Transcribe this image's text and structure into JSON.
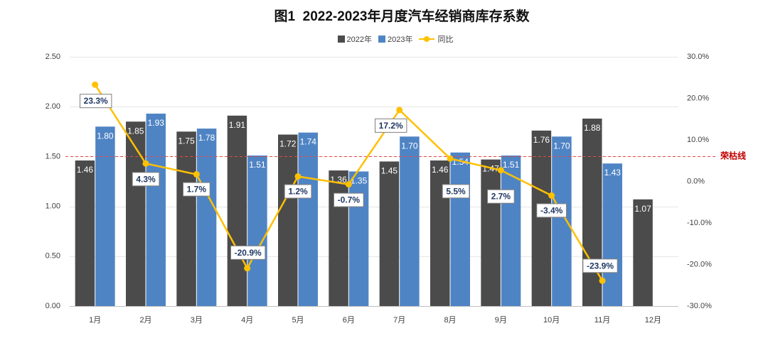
{
  "colors": {
    "bar_2022": "#4b4b4b",
    "bar_2023": "#4f84c4",
    "yoy_line": "#ffc000",
    "line_label_text": "#1f3864",
    "line_label_border": "#7f7f7f",
    "reference_line": "#e24a4a",
    "reference_label": "#c00000",
    "axis_line": "#bfbfbf",
    "grid": "#e6e6e6"
  },
  "chart_data": {
    "type": "bar",
    "title": "图1  2022-2023年月度汽车经销商库存系数",
    "categories": [
      "1月",
      "2月",
      "3月",
      "4月",
      "5月",
      "6月",
      "7月",
      "8月",
      "9月",
      "10月",
      "11月",
      "12月"
    ],
    "series": [
      {
        "name": "2022年",
        "type": "bar",
        "axis": "left",
        "values": [
          1.46,
          1.85,
          1.75,
          1.91,
          1.72,
          1.36,
          1.45,
          1.46,
          1.47,
          1.76,
          1.88,
          1.07
        ]
      },
      {
        "name": "2023年",
        "type": "bar",
        "axis": "left",
        "values": [
          1.8,
          1.93,
          1.78,
          1.51,
          1.74,
          1.35,
          1.7,
          1.54,
          1.51,
          1.7,
          1.43,
          null
        ]
      },
      {
        "name": "同比",
        "type": "line",
        "axis": "right",
        "unit": "%",
        "values": [
          23.3,
          4.3,
          1.7,
          -20.9,
          1.2,
          -0.7,
          17.2,
          5.5,
          2.7,
          -3.4,
          -23.9,
          null
        ]
      }
    ],
    "y_left": {
      "ylim": [
        0,
        2.5
      ],
      "ticks": [
        0,
        0.5,
        1,
        1.5,
        2,
        2.5
      ],
      "tick_labels": [
        "0.00",
        "0.50",
        "1.00",
        "1.50",
        "2.00",
        "2.50"
      ]
    },
    "y_right": {
      "ylim": [
        -30,
        30
      ],
      "ticks": [
        -30,
        -20,
        -10,
        0,
        10,
        20,
        30
      ],
      "tick_labels": [
        "-30.0%",
        "-20.0%",
        "-10.0%",
        "0.0%",
        "10.0%",
        "20.0%",
        "30.0%"
      ]
    },
    "reference_line": {
      "axis": "left",
      "value": 1.5,
      "label": "荣枯线",
      "style": "dashed"
    },
    "legend": {
      "position": "top-center"
    },
    "grid": true,
    "data_labels": true
  }
}
